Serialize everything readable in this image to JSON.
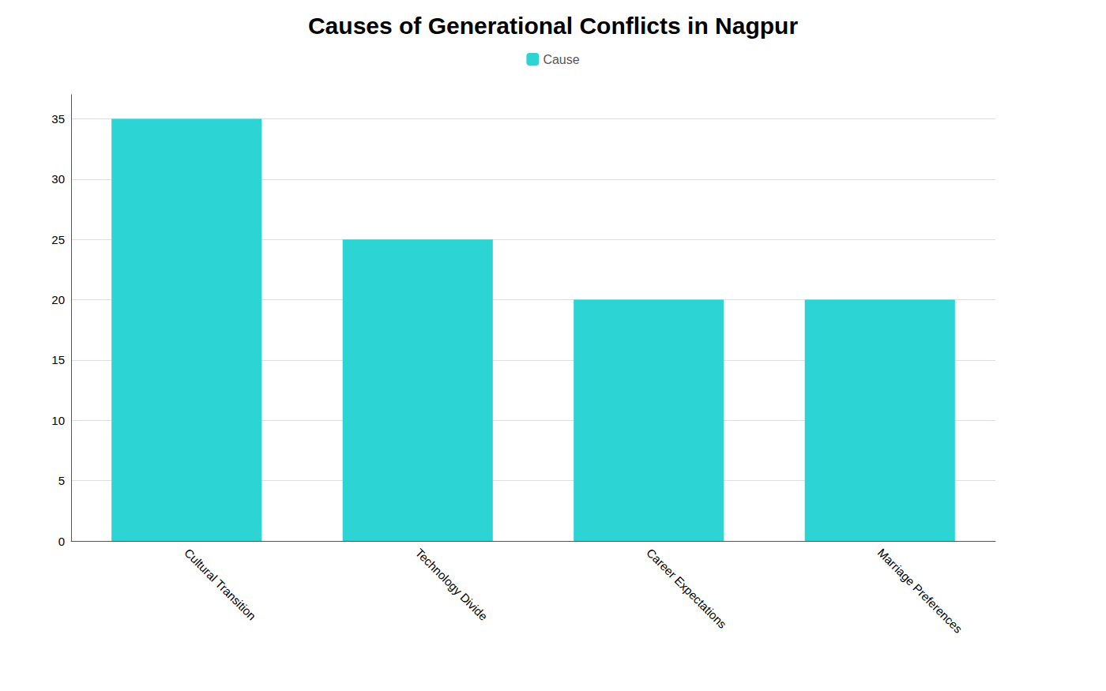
{
  "chart_data": {
    "type": "bar",
    "title": "Causes of Generational Conflicts in Nagpur",
    "categories": [
      "Cultural Transition",
      "Technology Divide",
      "Career Expectations",
      "Marriage Preferences"
    ],
    "series": [
      {
        "name": "Cause",
        "color": "#2DD4D4",
        "values": [
          35,
          25,
          20,
          20
        ]
      }
    ],
    "ylim": [
      0,
      37
    ],
    "yticks": [
      0,
      5,
      10,
      15,
      20,
      25,
      30,
      35
    ],
    "grid": true,
    "legend": "top"
  }
}
